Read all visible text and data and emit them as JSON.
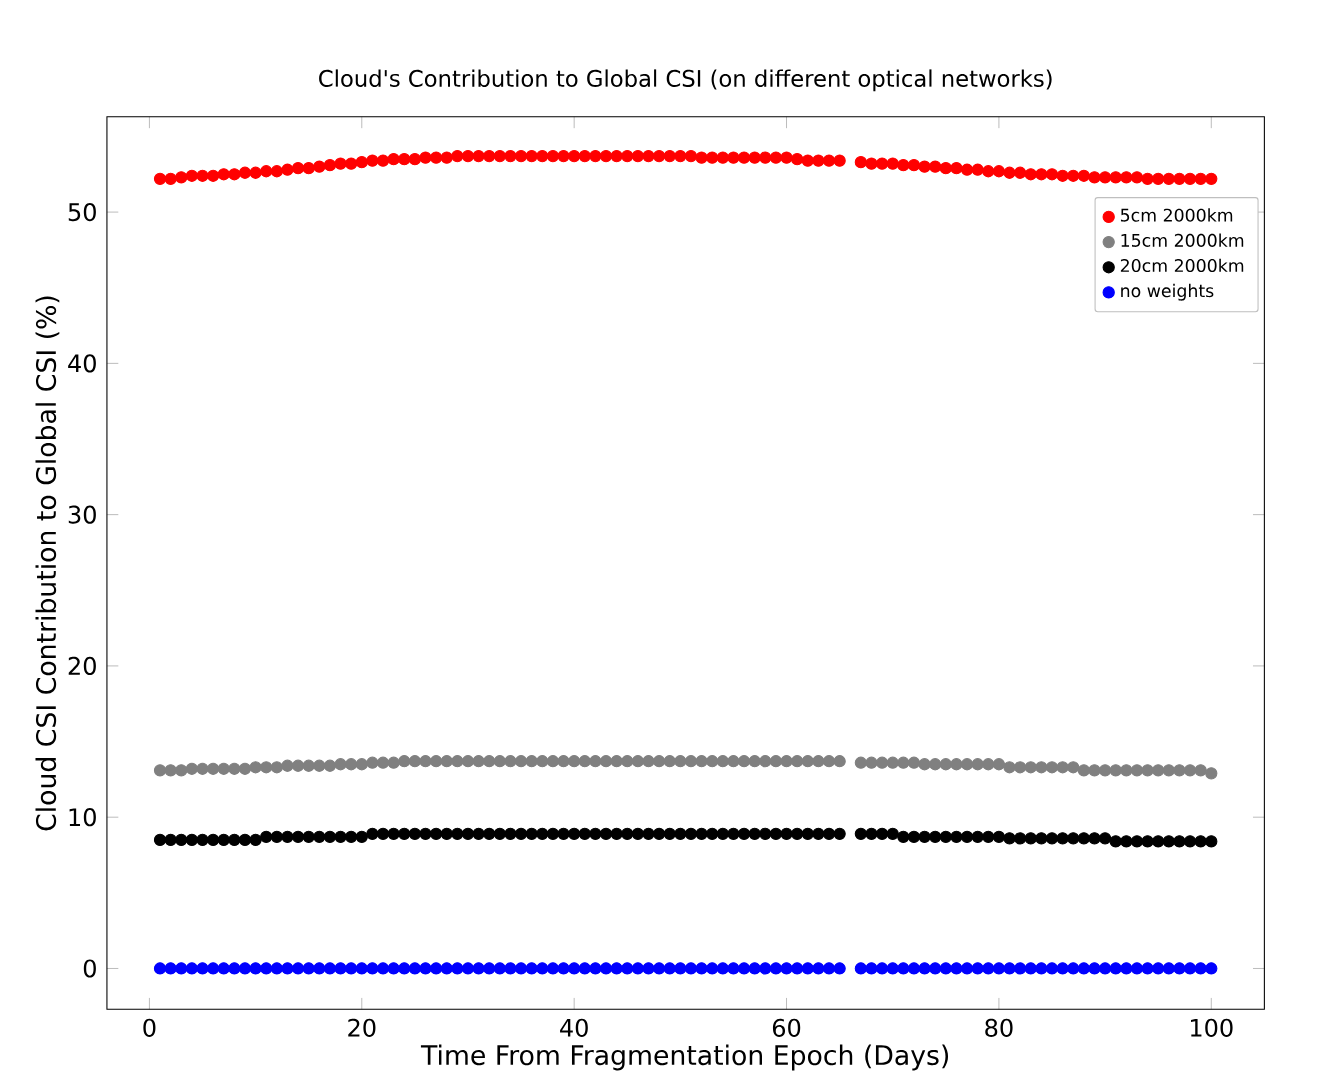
{
  "chart_data": {
    "type": "scatter",
    "title": "Cloud's Contribution to Global CSI (on different optical networks)",
    "xlabel": "Time From Fragmentation Epoch (Days)",
    "ylabel": "Cloud CSI Contribution to Global CSI (%)",
    "marker": "circle",
    "legend": "top right",
    "xlim": [
      -4,
      105
    ],
    "ylim": [
      -2.7,
      56.3
    ],
    "xticks": [
      0,
      20,
      40,
      60,
      80,
      100
    ],
    "yticks": [
      0,
      10,
      20,
      30,
      40,
      50
    ],
    "x": [
      1,
      2,
      3,
      4,
      5,
      6,
      7,
      8,
      9,
      10,
      11,
      12,
      13,
      14,
      15,
      16,
      17,
      18,
      19,
      20,
      21,
      22,
      23,
      24,
      25,
      26,
      27,
      28,
      29,
      30,
      31,
      32,
      33,
      34,
      35,
      36,
      37,
      38,
      39,
      40,
      41,
      42,
      43,
      44,
      45,
      46,
      47,
      48,
      49,
      50,
      51,
      52,
      53,
      54,
      55,
      56,
      57,
      58,
      59,
      60,
      61,
      62,
      63,
      64,
      65,
      67,
      68,
      69,
      70,
      71,
      72,
      73,
      74,
      75,
      76,
      77,
      78,
      79,
      80,
      81,
      82,
      83,
      84,
      85,
      86,
      87,
      88,
      89,
      90,
      91,
      92,
      93,
      94,
      95,
      96,
      97,
      98,
      99,
      100
    ],
    "series": [
      {
        "name": "5cm 2000km",
        "color": "#ff0000",
        "values": [
          52.2,
          52.2,
          52.3,
          52.4,
          52.4,
          52.4,
          52.5,
          52.5,
          52.6,
          52.6,
          52.7,
          52.7,
          52.8,
          52.9,
          52.9,
          53.0,
          53.1,
          53.2,
          53.2,
          53.3,
          53.4,
          53.4,
          53.5,
          53.5,
          53.5,
          53.6,
          53.6,
          53.6,
          53.7,
          53.7,
          53.7,
          53.7,
          53.7,
          53.7,
          53.7,
          53.7,
          53.7,
          53.7,
          53.7,
          53.7,
          53.7,
          53.7,
          53.7,
          53.7,
          53.7,
          53.7,
          53.7,
          53.7,
          53.7,
          53.7,
          53.7,
          53.6,
          53.6,
          53.6,
          53.6,
          53.6,
          53.6,
          53.6,
          53.6,
          53.6,
          53.5,
          53.4,
          53.4,
          53.4,
          53.4,
          53.3,
          53.2,
          53.2,
          53.2,
          53.1,
          53.1,
          53.0,
          53.0,
          52.9,
          52.9,
          52.8,
          52.8,
          52.7,
          52.7,
          52.6,
          52.6,
          52.5,
          52.5,
          52.5,
          52.4,
          52.4,
          52.4,
          52.3,
          52.3,
          52.3,
          52.3,
          52.3,
          52.2,
          52.2,
          52.2,
          52.2,
          52.2,
          52.2,
          52.2
        ]
      },
      {
        "name": "15cm 2000km",
        "color": "#808080",
        "values": [
          13.1,
          13.1,
          13.1,
          13.2,
          13.2,
          13.2,
          13.2,
          13.2,
          13.2,
          13.3,
          13.3,
          13.3,
          13.4,
          13.4,
          13.4,
          13.4,
          13.4,
          13.5,
          13.5,
          13.5,
          13.6,
          13.6,
          13.6,
          13.7,
          13.7,
          13.7,
          13.7,
          13.7,
          13.7,
          13.7,
          13.7,
          13.7,
          13.7,
          13.7,
          13.7,
          13.7,
          13.7,
          13.7,
          13.7,
          13.7,
          13.7,
          13.7,
          13.7,
          13.7,
          13.7,
          13.7,
          13.7,
          13.7,
          13.7,
          13.7,
          13.7,
          13.7,
          13.7,
          13.7,
          13.7,
          13.7,
          13.7,
          13.7,
          13.7,
          13.7,
          13.7,
          13.7,
          13.7,
          13.7,
          13.7,
          13.6,
          13.6,
          13.6,
          13.6,
          13.6,
          13.6,
          13.5,
          13.5,
          13.5,
          13.5,
          13.5,
          13.5,
          13.5,
          13.5,
          13.3,
          13.3,
          13.3,
          13.3,
          13.3,
          13.3,
          13.3,
          13.1,
          13.1,
          13.1,
          13.1,
          13.1,
          13.1,
          13.1,
          13.1,
          13.1,
          13.1,
          13.1,
          13.1,
          12.9
        ]
      },
      {
        "name": "20cm 2000km",
        "color": "#000000",
        "values": [
          8.5,
          8.5,
          8.5,
          8.5,
          8.5,
          8.5,
          8.5,
          8.5,
          8.5,
          8.5,
          8.7,
          8.7,
          8.7,
          8.7,
          8.7,
          8.7,
          8.7,
          8.7,
          8.7,
          8.7,
          8.9,
          8.9,
          8.9,
          8.9,
          8.9,
          8.9,
          8.9,
          8.9,
          8.9,
          8.9,
          8.9,
          8.9,
          8.9,
          8.9,
          8.9,
          8.9,
          8.9,
          8.9,
          8.9,
          8.9,
          8.9,
          8.9,
          8.9,
          8.9,
          8.9,
          8.9,
          8.9,
          8.9,
          8.9,
          8.9,
          8.9,
          8.9,
          8.9,
          8.9,
          8.9,
          8.9,
          8.9,
          8.9,
          8.9,
          8.9,
          8.9,
          8.9,
          8.9,
          8.9,
          8.9,
          8.9,
          8.9,
          8.9,
          8.9,
          8.7,
          8.7,
          8.7,
          8.7,
          8.7,
          8.7,
          8.7,
          8.7,
          8.7,
          8.7,
          8.6,
          8.6,
          8.6,
          8.6,
          8.6,
          8.6,
          8.6,
          8.6,
          8.6,
          8.6,
          8.4,
          8.4,
          8.4,
          8.4,
          8.4,
          8.4,
          8.4,
          8.4,
          8.4,
          8.4
        ]
      },
      {
        "name": "no weights",
        "color": "#0000ff",
        "values": [
          0,
          0,
          0,
          0,
          0,
          0,
          0,
          0,
          0,
          0,
          0,
          0,
          0,
          0,
          0,
          0,
          0,
          0,
          0,
          0,
          0,
          0,
          0,
          0,
          0,
          0,
          0,
          0,
          0,
          0,
          0,
          0,
          0,
          0,
          0,
          0,
          0,
          0,
          0,
          0,
          0,
          0,
          0,
          0,
          0,
          0,
          0,
          0,
          0,
          0,
          0,
          0,
          0,
          0,
          0,
          0,
          0,
          0,
          0,
          0,
          0,
          0,
          0,
          0,
          0,
          0,
          0,
          0,
          0,
          0,
          0,
          0,
          0,
          0,
          0,
          0,
          0,
          0,
          0,
          0,
          0,
          0,
          0,
          0,
          0,
          0,
          0,
          0,
          0,
          0,
          0,
          0,
          0,
          0,
          0,
          0,
          0,
          0,
          0
        ]
      }
    ]
  }
}
